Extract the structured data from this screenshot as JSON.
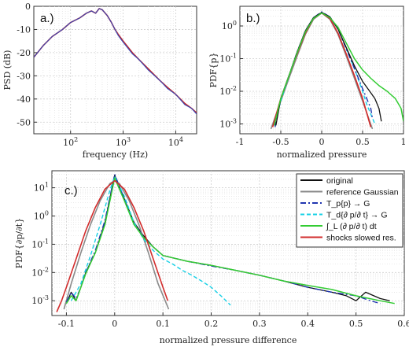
{
  "chart_data": [
    {
      "type": "line",
      "panel_label": "a.)",
      "xlabel": "frequency (Hz)",
      "ylabel": "PSD (dB)",
      "xscale": "log",
      "xlim": [
        20,
        25000
      ],
      "ylim": [
        -55,
        0
      ],
      "xticks": [
        {
          "v": 100,
          "b": "10",
          "e": "2"
        },
        {
          "v": 1000,
          "b": "10",
          "e": "3"
        },
        {
          "v": 10000,
          "b": "10",
          "e": "4"
        }
      ],
      "yticks": [
        0,
        -10,
        -20,
        -30,
        -40,
        -50
      ],
      "grid": true,
      "series": [
        {
          "color": "#c0282d",
          "lw": 1.6,
          "x": [
            20,
            30,
            45,
            70,
            100,
            150,
            200,
            250,
            300,
            350,
            400,
            500,
            600,
            700,
            800,
            1000,
            1500,
            2000,
            3000,
            5000,
            7000,
            10000,
            15000,
            20000,
            25000
          ],
          "y": [
            -22,
            -17,
            -13,
            -10,
            -7,
            -5,
            -3,
            -2,
            -3,
            -1,
            -1.5,
            -4,
            -7,
            -10,
            -12,
            -15,
            -20,
            -23,
            -27,
            -32,
            -35,
            -38,
            -42,
            -44,
            -46
          ]
        },
        {
          "color": "#3648b8",
          "lw": 1.1,
          "x": [
            20,
            30,
            45,
            70,
            100,
            150,
            200,
            250,
            300,
            350,
            400,
            500,
            600,
            700,
            800,
            1000,
            1500,
            2000,
            3000,
            5000,
            7000,
            10000,
            15000,
            20000,
            25000
          ],
          "y": [
            -22,
            -17,
            -13,
            -10,
            -7,
            -5,
            -3,
            -2,
            -3,
            -1,
            -1.5,
            -4,
            -7,
            -10,
            -12.5,
            -15.5,
            -20.5,
            -23,
            -27.5,
            -32,
            -35.5,
            -38,
            -42.5,
            -44,
            -46.5
          ]
        }
      ]
    },
    {
      "type": "line",
      "panel_label": "b.)",
      "xlabel": "normalized pressure",
      "ylabel": "PDF{p}",
      "yscale": "log",
      "xlim": [
        -1,
        1
      ],
      "ylim": [
        0.0005,
        4
      ],
      "xticks": [
        -1,
        -0.5,
        0,
        0.5,
        1
      ],
      "yticks": [
        {
          "v": 0.001,
          "b": "10",
          "e": "-3"
        },
        {
          "v": 0.01,
          "b": "10",
          "e": "-2"
        },
        {
          "v": 0.1,
          "b": "10",
          "e": "-1"
        },
        {
          "v": 1,
          "b": "10",
          "e": "0"
        }
      ],
      "grid": true,
      "series": [
        {
          "name": "reference Gaussian",
          "color": "#8a8a8a",
          "lw": 1.6,
          "x": [
            -0.62,
            -0.5,
            -0.4,
            -0.3,
            -0.2,
            -0.1,
            0,
            0.1,
            0.2,
            0.3,
            0.4,
            0.5,
            0.62
          ],
          "y": [
            0.0007,
            0.005,
            0.025,
            0.12,
            0.55,
            1.6,
            2.5,
            1.6,
            0.55,
            0.12,
            0.025,
            0.005,
            0.0007
          ]
        },
        {
          "name": "shocks slowed res.",
          "color": "#d22c2c",
          "lw": 1.6,
          "x": [
            -0.6,
            -0.5,
            -0.4,
            -0.3,
            -0.2,
            -0.1,
            0,
            0.1,
            0.2,
            0.3,
            0.4,
            0.5,
            0.6
          ],
          "y": [
            0.0008,
            0.006,
            0.03,
            0.14,
            0.6,
            1.7,
            2.5,
            1.7,
            0.6,
            0.14,
            0.03,
            0.006,
            0.0008
          ]
        },
        {
          "name": "T_d{∂p/∂t}→G",
          "color": "#18d0e6",
          "lw": 1.4,
          "dash": "5,3",
          "x": [
            -0.58,
            -0.5,
            -0.4,
            -0.3,
            -0.2,
            -0.1,
            0,
            0.1,
            0.2,
            0.3,
            0.4,
            0.5,
            0.55,
            0.6,
            0.65
          ],
          "y": [
            0.0009,
            0.005,
            0.03,
            0.15,
            0.7,
            1.8,
            2.6,
            1.9,
            0.8,
            0.2,
            0.05,
            0.01,
            0.004,
            0.002,
            0.001
          ]
        },
        {
          "name": "T_p{p}→G",
          "color": "#2035b0",
          "lw": 1.4,
          "dash": "7,3,2,3",
          "x": [
            -0.57,
            -0.5,
            -0.4,
            -0.3,
            -0.2,
            -0.1,
            0,
            0.1,
            0.2,
            0.3,
            0.4,
            0.5,
            0.55,
            0.6,
            0.62
          ],
          "y": [
            0.0008,
            0.006,
            0.03,
            0.16,
            0.7,
            1.8,
            2.7,
            1.9,
            0.8,
            0.2,
            0.05,
            0.012,
            0.006,
            0.003,
            0.0015
          ]
        },
        {
          "name": "original",
          "color": "#111111",
          "lw": 1.3,
          "x": [
            -0.56,
            -0.5,
            -0.4,
            -0.3,
            -0.2,
            -0.1,
            0,
            0.1,
            0.2,
            0.3,
            0.4,
            0.5,
            0.6,
            0.65,
            0.7,
            0.73
          ],
          "y": [
            0.0009,
            0.006,
            0.03,
            0.16,
            0.7,
            1.8,
            2.6,
            1.9,
            0.8,
            0.22,
            0.06,
            0.02,
            0.009,
            0.006,
            0.003,
            0.0012
          ]
        },
        {
          "name": "∫_L(∂p/∂t)dt",
          "color": "#33cc33",
          "lw": 1.5,
          "x": [
            -0.58,
            -0.5,
            -0.4,
            -0.3,
            -0.2,
            -0.1,
            0,
            0.1,
            0.2,
            0.3,
            0.4,
            0.5,
            0.6,
            0.7,
            0.8,
            0.9,
            0.97,
            1.0
          ],
          "y": [
            0.0009,
            0.006,
            0.03,
            0.15,
            0.65,
            1.7,
            2.5,
            1.8,
            0.9,
            0.3,
            0.1,
            0.045,
            0.025,
            0.015,
            0.01,
            0.006,
            0.003,
            0.0012
          ]
        }
      ]
    },
    {
      "type": "line",
      "panel_label": "c.)",
      "xlabel": "normalized pressure difference",
      "ylabel": "PDF{∂p/∂t}",
      "yscale": "log",
      "xlim": [
        -0.13,
        0.6
      ],
      "ylim": [
        0.0003,
        40
      ],
      "xticks": [
        -0.1,
        0,
        0.1,
        0.2,
        0.3,
        0.4,
        0.5,
        0.6
      ],
      "yticks": [
        {
          "v": 0.001,
          "b": "10",
          "e": "-3"
        },
        {
          "v": 0.01,
          "b": "10",
          "e": "-2"
        },
        {
          "v": 0.1,
          "b": "10",
          "e": "-1"
        },
        {
          "v": 1,
          "b": "10",
          "e": "0"
        },
        {
          "v": 10,
          "b": "10",
          "e": "1"
        }
      ],
      "grid": true,
      "legend": "top-right",
      "series": [
        {
          "name": "original",
          "color": "#111111",
          "lw": 1.3,
          "x": [
            -0.1,
            -0.09,
            -0.08,
            -0.07,
            -0.06,
            -0.04,
            -0.02,
            0,
            0.02,
            0.04,
            0.06,
            0.08,
            0.1,
            0.15,
            0.2,
            0.25,
            0.3,
            0.35,
            0.4,
            0.45,
            0.48,
            0.5,
            0.52,
            0.55,
            0.57
          ],
          "y": [
            0.0008,
            0.002,
            0.001,
            0.003,
            0.01,
            0.05,
            0.6,
            28,
            4,
            0.6,
            0.2,
            0.08,
            0.04,
            0.025,
            0.018,
            0.012,
            0.008,
            0.005,
            0.003,
            0.002,
            0.0015,
            0.001,
            0.002,
            0.0012,
            0.001
          ]
        },
        {
          "name": "reference Gaussian",
          "color": "#8a8a8a",
          "lw": 1.6,
          "x": [
            -0.105,
            -0.09,
            -0.07,
            -0.05,
            -0.03,
            -0.01,
            0,
            0.01,
            0.03,
            0.05,
            0.07,
            0.09,
            0.112
          ],
          "y": [
            0.0005,
            0.004,
            0.05,
            0.5,
            3.5,
            14,
            18,
            14,
            3.5,
            0.5,
            0.05,
            0.004,
            0.0005
          ]
        },
        {
          "name": "T_p{p}→G",
          "color": "#2035b0",
          "lw": 1.4,
          "dash": "7,3,2,3",
          "x": [
            -0.1,
            -0.09,
            -0.08,
            -0.07,
            -0.06,
            -0.04,
            -0.02,
            0,
            0.02,
            0.04,
            0.06,
            0.08,
            0.1,
            0.15,
            0.2,
            0.25,
            0.3,
            0.35,
            0.4,
            0.45,
            0.5,
            0.53,
            0.55
          ],
          "y": [
            0.0009,
            0.002,
            0.0012,
            0.003,
            0.01,
            0.06,
            0.7,
            30,
            4,
            0.55,
            0.18,
            0.08,
            0.04,
            0.025,
            0.017,
            0.012,
            0.008,
            0.005,
            0.003,
            0.002,
            0.0015,
            0.001,
            0.0008
          ]
        },
        {
          "name": "T_d{∂p/∂t}→G",
          "color": "#18d0e6",
          "lw": 1.4,
          "dash": "5,3",
          "x": [
            -0.09,
            -0.07,
            -0.05,
            -0.03,
            -0.01,
            0,
            0.02,
            0.04,
            0.06,
            0.08,
            0.1,
            0.12,
            0.14,
            0.16,
            0.18,
            0.2,
            0.22,
            0.24
          ],
          "y": [
            0.001,
            0.004,
            0.04,
            0.5,
            8,
            25,
            5,
            0.6,
            0.15,
            0.06,
            0.03,
            0.02,
            0.012,
            0.008,
            0.005,
            0.003,
            0.0015,
            0.0007
          ]
        },
        {
          "name": "∫_L(∂p/∂t)dt",
          "color": "#33cc33",
          "lw": 1.5,
          "x": [
            -0.1,
            -0.09,
            -0.08,
            -0.07,
            -0.06,
            -0.04,
            -0.02,
            0,
            0.02,
            0.04,
            0.06,
            0.08,
            0.1,
            0.15,
            0.2,
            0.25,
            0.3,
            0.35,
            0.4,
            0.45,
            0.5,
            0.55,
            0.58
          ],
          "y": [
            0.0008,
            0.0015,
            0.001,
            0.003,
            0.009,
            0.05,
            0.5,
            22,
            3.5,
            0.5,
            0.17,
            0.08,
            0.04,
            0.025,
            0.018,
            0.012,
            0.008,
            0.005,
            0.0035,
            0.0025,
            0.0015,
            0.001,
            0.0008
          ]
        },
        {
          "name": "shocks slowed res.",
          "color": "#d22c2c",
          "lw": 1.6,
          "x": [
            -0.12,
            -0.11,
            -0.1,
            -0.08,
            -0.06,
            -0.04,
            -0.02,
            0,
            0.02,
            0.04,
            0.06,
            0.08,
            0.1,
            0.11
          ],
          "y": [
            0.0004,
            0.001,
            0.003,
            0.03,
            0.3,
            2,
            9,
            18,
            9,
            2,
            0.3,
            0.03,
            0.003,
            0.001
          ]
        }
      ],
      "legend_entries": [
        {
          "label": "original",
          "color": "#111111",
          "dash": ""
        },
        {
          "label": "reference Gaussian",
          "color": "#8a8a8a",
          "dash": ""
        },
        {
          "label": "T_p{p} → G",
          "color": "#2035b0",
          "dash": "7,3,2,3"
        },
        {
          "label": "T_d{∂ p/∂ t} → G",
          "color": "#18d0e6",
          "dash": "5,3"
        },
        {
          "label": "∫_L (∂ p/∂ t) dt",
          "color": "#33cc33",
          "dash": ""
        },
        {
          "label": "shocks slowed res.",
          "color": "#d22c2c",
          "dash": ""
        }
      ]
    }
  ]
}
